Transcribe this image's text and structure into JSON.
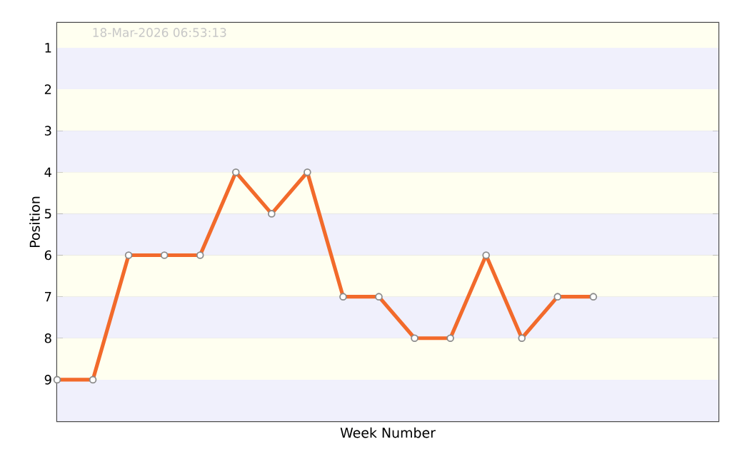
{
  "chart_data": {
    "type": "line",
    "xlabel": "Week Number",
    "ylabel": "Position",
    "annotations": [
      "18-Mar-2026  06:53:13"
    ],
    "categories": [
      null,
      null,
      null,
      null,
      null,
      null,
      null,
      null,
      null,
      null,
      null,
      null,
      null,
      null,
      null,
      null,
      null,
      null,
      null
    ],
    "series": [
      {
        "color": "#f26a2b",
        "values": [
          9,
          9,
          6,
          6,
          6,
          4,
          5,
          4,
          7,
          7,
          8,
          8,
          6,
          8,
          7,
          7,
          null,
          null,
          null
        ]
      }
    ],
    "ylim": [
      10,
      0.4
    ],
    "yticks": [
      1,
      2,
      3,
      4,
      5,
      6,
      7,
      8,
      9
    ],
    "grid": "y",
    "marker": "circle",
    "line_style": "solid",
    "tick_labels": "y"
  }
}
